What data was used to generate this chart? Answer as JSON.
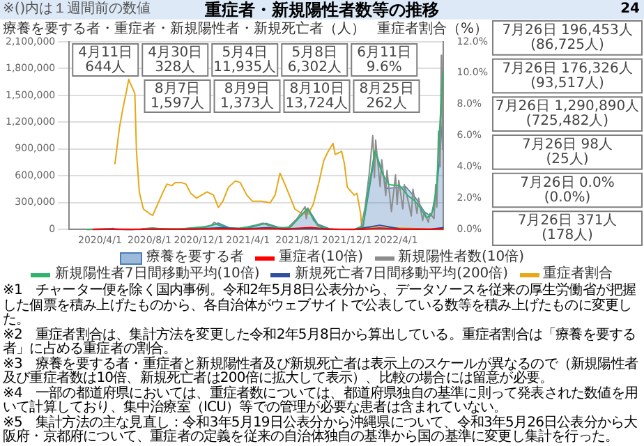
{
  "chart_data": {
    "type": "line",
    "title": "重症者・新規陽性者数等の推移",
    "ylabel": "療養を要する者・重症者・新規陽性者・新規死亡者（人）",
    "y2label": "重症者割合（%）",
    "xlim": [
      "2020-01-16",
      "2022-07-26"
    ],
    "xticks": [
      {
        "value": "2020-04-01",
        "label": "2020/4/1"
      },
      {
        "value": "2020-08-01",
        "label": "2020/8/1"
      },
      {
        "value": "2020-12-01",
        "label": "2020/12/1"
      },
      {
        "value": "2021-04-01",
        "label": "2021/4/1"
      },
      {
        "value": "2021-08-01",
        "label": "2021/8/1"
      },
      {
        "value": "2021-12-01",
        "label": "2021/12/1"
      },
      {
        "value": "2022-04-01",
        "label": "2022/4/1"
      }
    ],
    "ylim": [
      0,
      2100000
    ],
    "yticks": [
      {
        "value": 0,
        "label": "0"
      },
      {
        "value": 300000,
        "label": "300,000"
      },
      {
        "value": 600000,
        "label": "600,000"
      },
      {
        "value": 900000,
        "label": "900,000"
      },
      {
        "value": 1200000,
        "label": "1,200,000"
      },
      {
        "value": 1500000,
        "label": "1,500,000"
      },
      {
        "value": 1800000,
        "label": "1,800,000"
      },
      {
        "value": 2100000,
        "label": "2,100,000"
      }
    ],
    "y2lim": [
      0,
      12
    ],
    "y2ticks": [
      {
        "value": 0,
        "label": "0.0%"
      },
      {
        "value": 2,
        "label": "2.0%"
      },
      {
        "value": 4,
        "label": "4.0%"
      },
      {
        "value": 6,
        "label": "6.0%"
      },
      {
        "value": 8,
        "label": "8.0%"
      },
      {
        "value": 10,
        "label": "10.0%"
      },
      {
        "value": 12,
        "label": "12.0%"
      }
    ],
    "grid": "y",
    "legend": "bottom",
    "marker": "none",
    "line_style": "solid",
    "series": [
      {
        "name": "療養を要する者",
        "type": "area",
        "color": "#4a7ebb",
        "x": [
          "2020-03-01",
          "2020-04-11",
          "2020-05-04",
          "2020-05-08",
          "2020-05-25",
          "2020-06-20",
          "2020-07-10",
          "2020-08-10",
          "2020-09-10",
          "2020-10-15",
          "2020-11-15",
          "2020-12-15",
          "2021-01-18",
          "2021-02-15",
          "2021-03-15",
          "2021-04-15",
          "2021-05-15",
          "2021-06-15",
          "2021-07-10",
          "2021-08-28",
          "2021-09-20",
          "2021-10-20",
          "2021-11-20",
          "2021-12-20",
          "2022-01-10",
          "2022-02-10",
          "2022-03-10",
          "2022-04-10",
          "2022-04-25",
          "2022-05-20",
          "2022-06-10",
          "2022-06-25",
          "2022-07-05",
          "2022-07-15",
          "2022-07-26"
        ],
        "values": [
          0,
          5000,
          12000,
          6000,
          2500,
          1000,
          2500,
          14000,
          5000,
          5000,
          11000,
          25000,
          72000,
          18000,
          10000,
          30000,
          70000,
          25000,
          16000,
          231000,
          60000,
          8000,
          2000,
          2000,
          30000,
          880000,
          460000,
          470000,
          480000,
          350000,
          200000,
          150000,
          250000,
          650000,
          1290000
        ]
      },
      {
        "name": "重症者(10倍)",
        "type": "line",
        "color": "#ff0000",
        "x": [
          "2020-03-15",
          "2020-04-30",
          "2020-06-15",
          "2020-08-25",
          "2020-10-01",
          "2021-01-27",
          "2021-03-15",
          "2021-05-25",
          "2021-07-01",
          "2021-09-04",
          "2021-10-25",
          "2021-12-15",
          "2022-01-10",
          "2022-02-20",
          "2022-04-10",
          "2022-06-25",
          "2022-07-26"
        ],
        "values": [
          1000,
          3000,
          1000,
          3000,
          2000,
          10000,
          3000,
          13000,
          5000,
          22000,
          1000,
          1000,
          1000,
          15000,
          2000,
          1000,
          4000
        ]
      },
      {
        "name": "新規陽性者数(10倍)",
        "type": "line",
        "color": "#8c8c8c",
        "x": [
          "2020-03-01",
          "2020-04-11",
          "2020-04-25",
          "2020-05-15",
          "2020-06-15",
          "2020-07-10",
          "2020-07-30",
          "2020-08-07",
          "2020-08-20",
          "2020-09-15",
          "2020-10-15",
          "2020-11-15",
          "2020-12-15",
          "2020-12-31",
          "2021-01-08",
          "2021-01-20",
          "2021-02-10",
          "2021-03-10",
          "2021-03-31",
          "2021-04-20",
          "2021-05-08",
          "2021-05-25",
          "2021-06-20",
          "2021-07-10",
          "2021-07-31",
          "2021-08-20",
          "2021-08-23",
          "2021-08-27",
          "2021-09-10",
          "2021-09-30",
          "2021-10-20",
          "2021-11-20",
          "2021-12-20",
          "2022-01-05",
          "2022-01-15",
          "2022-01-25",
          "2022-02-03",
          "2022-02-07",
          "2022-02-10",
          "2022-02-21",
          "2022-02-25",
          "2022-03-07",
          "2022-03-10",
          "2022-03-21",
          "2022-03-31",
          "2022-04-04",
          "2022-04-08",
          "2022-04-18",
          "2022-04-22",
          "2022-05-02",
          "2022-05-09",
          "2022-05-13",
          "2022-05-23",
          "2022-05-27",
          "2022-06-06",
          "2022-06-10",
          "2022-06-20",
          "2022-06-24",
          "2022-07-04",
          "2022-07-08",
          "2022-07-11",
          "2022-07-15",
          "2022-07-19",
          "2022-07-22",
          "2022-07-25",
          "2022-07-26"
        ],
        "values": [
          0,
          6000,
          3000,
          0,
          0,
          4000,
          13000,
          16000,
          9000,
          5000,
          6000,
          16000,
          30000,
          44000,
          79000,
          50000,
          15000,
          12000,
          27000,
          48000,
          70000,
          40000,
          14000,
          25000,
          120000,
          255000,
          120000,
          240000,
          100000,
          15000,
          4000,
          1000,
          2000,
          25000,
          250000,
          620000,
          1050000,
          580000,
          1000000,
          480000,
          780000,
          380000,
          660000,
          200000,
          610000,
          280000,
          550000,
          230000,
          500000,
          300000,
          150000,
          450000,
          180000,
          350000,
          100000,
          200000,
          80000,
          180000,
          120000,
          500000,
          250000,
          1100000,
          700000,
          1950000,
          900000,
          1960000
        ]
      },
      {
        "name": "新規陽性者7日間移動平均(10倍)",
        "type": "line",
        "color": "#2fb36b",
        "x": [
          "2020-03-01",
          "2020-04-11",
          "2020-05-15",
          "2020-06-15",
          "2020-07-10",
          "2020-08-09",
          "2020-09-15",
          "2020-10-15",
          "2020-11-20",
          "2020-12-20",
          "2021-01-12",
          "2021-02-10",
          "2021-03-10",
          "2021-04-20",
          "2021-05-12",
          "2021-06-20",
          "2021-07-15",
          "2021-08-25",
          "2021-09-20",
          "2021-10-20",
          "2021-11-20",
          "2021-12-20",
          "2022-01-10",
          "2022-01-25",
          "2022-02-08",
          "2022-02-25",
          "2022-03-15",
          "2022-04-10",
          "2022-04-30",
          "2022-05-15",
          "2022-05-30",
          "2022-06-15",
          "2022-06-28",
          "2022-07-10",
          "2022-07-20",
          "2022-07-26"
        ],
        "values": [
          0,
          5000,
          1000,
          0,
          3000,
          14000,
          5000,
          6000,
          19000,
          28000,
          60000,
          15000,
          11000,
          42000,
          63000,
          14000,
          25000,
          233000,
          40000,
          4000,
          1000,
          2000,
          40000,
          500000,
          880000,
          640000,
          500000,
          490000,
          380000,
          330000,
          250000,
          130000,
          165000,
          450000,
          1300000,
          1760000
        ]
      },
      {
        "name": "新規死亡者7日間移動平均(200倍)",
        "type": "line",
        "color": "#2f4f9f",
        "x": [
          "2020-03-15",
          "2020-05-05",
          "2020-06-15",
          "2020-08-25",
          "2020-11-01",
          "2021-01-27",
          "2021-03-15",
          "2021-05-20",
          "2021-07-01",
          "2021-09-01",
          "2021-10-20",
          "2021-12-20",
          "2022-02-20",
          "2022-04-10",
          "2022-06-25",
          "2022-07-26"
        ],
        "values": [
          0,
          4000,
          0,
          3000,
          2000,
          19000,
          6000,
          20000,
          4000,
          12000,
          1000,
          0,
          47000,
          8000,
          3000,
          20000
        ]
      },
      {
        "name": "重症者割合",
        "type": "line",
        "axis": "y2",
        "color": "#e6a817",
        "x": [
          "2020-05-08",
          "2020-05-19",
          "2020-05-28",
          "2020-06-05",
          "2020-06-11",
          "2020-06-14",
          "2020-06-21",
          "2020-06-26",
          "2020-06-30",
          "2020-07-07",
          "2020-07-17",
          "2020-08-02",
          "2020-08-09",
          "2020-08-21",
          "2020-09-02",
          "2020-09-13",
          "2020-09-25",
          "2020-10-04",
          "2020-10-18",
          "2020-10-30",
          "2020-11-11",
          "2020-11-25",
          "2020-12-21",
          "2021-01-06",
          "2021-01-18",
          "2021-01-29",
          "2021-02-12",
          "2021-03-01",
          "2021-03-13",
          "2021-03-29",
          "2021-04-12",
          "2021-05-03",
          "2021-05-26",
          "2021-06-07",
          "2021-06-19",
          "2021-07-01",
          "2021-07-12",
          "2021-07-26",
          "2021-08-12",
          "2021-08-28",
          "2021-09-09",
          "2021-09-23",
          "2021-10-05",
          "2021-10-16",
          "2021-10-28",
          "2021-11-02",
          "2021-11-11",
          "2021-11-18",
          "2021-11-25",
          "2021-12-02",
          "2021-12-19",
          "2021-12-26",
          "2022-01-04",
          "2022-01-06",
          "2022-01-16",
          "2022-04-01",
          "2022-07-26"
        ],
        "values": [
          4.2,
          6.5,
          7.8,
          8.8,
          9.6,
          9.4,
          9.0,
          8.7,
          5.0,
          2.4,
          1.3,
          1.0,
          0.9,
          1.6,
          2.3,
          2.9,
          2.8,
          3.0,
          3.0,
          2.9,
          2.3,
          2.0,
          2.4,
          2.2,
          1.4,
          1.8,
          2.7,
          3.1,
          3.0,
          2.2,
          1.8,
          1.8,
          1.7,
          2.2,
          3.6,
          2.9,
          2.2,
          1.3,
          1.0,
          1.0,
          1.6,
          3.0,
          4.4,
          5.0,
          5.5,
          4.8,
          4.9,
          5.0,
          4.2,
          2.7,
          2.2,
          2.3,
          1.0,
          0.3,
          0.1,
          0.1,
          0.0
        ]
      }
    ],
    "annotations": [
      "※()内は１週間前の数値",
      "4月11日 644人",
      "4月30日 328人",
      "5月4日 11,935人",
      "5月8日 6,302人",
      "6月11日 9.6%",
      "8月7日 1,597人",
      "8月9日 1,373人",
      "8月10日 13,724人",
      "8月25日 262人",
      "7月26日 196,453人 (86,725人)",
      "7月26日 176,326人 (93,517人)",
      "7月26日 1,290,890人 (725,482人)",
      "7月26日 98人 (25人)",
      "7月26日 0.0% (0.0%)",
      "7月26日 371人 (178人)",
      "※1　チャーター便を除く国内事例。令和2年5月8日公表分から、データソースを従来の厚生労働省が把握した個票を積み上げたものから、各自治体がウェブサイトで公表している数等を積み上げたものに変更した。",
      "※2　重症者割合は、集計方法を変更した令和2年5月8日から算出している。重症者割合は「療養を要する者」に占める重症者の割合。",
      "※3　療養を要する者・重症者と新規陽性者及び新規死亡者は表示上のスケールが異なるので（新規陽性者及び重症者数は10倍、新規死亡者は200倍に拡大して表示）、比較の場合には留意が必要。",
      "※4　一部の都道府県においては、重症者数については、都道府県独自の基準に則って発表された数値を用いて計算しており、集中治療室（ICU）等での管理が必要な患者は含まれていない。",
      "※5　集計方法の主な見直し：令和3年5月19日公表分から沖縄県について、令和3年5月26日公表分から大阪府・京都府について、重症者の定義を従来の自治体独自の基準から国の基準に変更し集計を行った。",
      "24"
    ]
  }
}
